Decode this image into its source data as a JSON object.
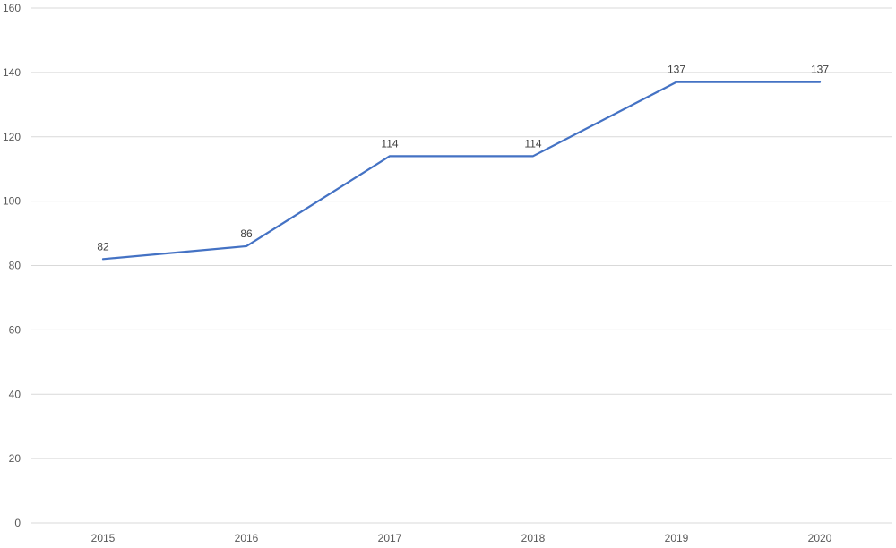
{
  "chart_data": {
    "type": "line",
    "title": "",
    "xlabel": "",
    "ylabel": "",
    "categories": [
      "2015",
      "2016",
      "2017",
      "2018",
      "2019",
      "2020"
    ],
    "series": [
      {
        "values": [
          82,
          86,
          114,
          114,
          137,
          137
        ],
        "color": "#4472c4"
      }
    ],
    "data_labels": [
      "82",
      "86",
      "114",
      "114",
      "137",
      "137"
    ],
    "ylim": [
      0,
      160
    ],
    "y_ticks": [
      0,
      20,
      40,
      60,
      80,
      100,
      120,
      140,
      160
    ],
    "y_tick_labels": [
      "0",
      "20",
      "40",
      "60",
      "80",
      "100",
      "120",
      "140",
      "160"
    ],
    "grid": true,
    "legend": "none"
  }
}
